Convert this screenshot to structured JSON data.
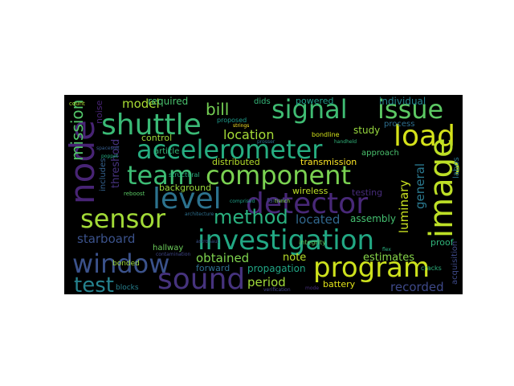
{
  "wordcloud": {
    "background": "#000000",
    "words": [
      {
        "text": "signal",
        "color": "#3fbc73"
      },
      {
        "text": "issue",
        "color": "#5cc863"
      },
      {
        "text": "shuttle",
        "color": "#3aba76"
      },
      {
        "text": "node",
        "color": "#482475"
      },
      {
        "text": "accelerometer",
        "color": "#26ad81"
      },
      {
        "text": "load",
        "color": "#d5e21a"
      },
      {
        "text": "team",
        "color": "#3dbc74"
      },
      {
        "text": "component",
        "color": "#7ad151"
      },
      {
        "text": "image",
        "color": "#bddf26"
      },
      {
        "text": "level",
        "color": "#2c728e"
      },
      {
        "text": "detector",
        "color": "#482878"
      },
      {
        "text": "sensor",
        "color": "#a2da37"
      },
      {
        "text": "method",
        "color": "#2ab07f"
      },
      {
        "text": "investigation",
        "color": "#22a884"
      },
      {
        "text": "window",
        "color": "#3b528b"
      },
      {
        "text": "program",
        "color": "#cde11d"
      },
      {
        "text": "test",
        "color": "#26828e"
      },
      {
        "text": "sound",
        "color": "#46337e"
      },
      {
        "text": "mission",
        "color": "#52c569"
      },
      {
        "text": "model",
        "color": "#a8db34"
      },
      {
        "text": "required",
        "color": "#4ac16d"
      },
      {
        "text": "bill",
        "color": "#75d054"
      },
      {
        "text": "location",
        "color": "#a5db36"
      },
      {
        "text": "starboard",
        "color": "#3b528b"
      },
      {
        "text": "located",
        "color": "#31688e"
      },
      {
        "text": "luminary",
        "color": "#c8e020"
      },
      {
        "text": "general",
        "color": "#2a788e"
      },
      {
        "text": "obtained",
        "color": "#7fd34e"
      },
      {
        "text": "note",
        "color": "#b8de29"
      },
      {
        "text": "estimates",
        "color": "#86d549"
      },
      {
        "text": "period",
        "color": "#a0da39"
      },
      {
        "text": "recorded",
        "color": "#3e4989"
      },
      {
        "text": "individual",
        "color": "#25848e"
      },
      {
        "text": "threshold",
        "color": "#46327e"
      },
      {
        "text": "background",
        "color": "#9bd93c"
      },
      {
        "text": "distributed",
        "color": "#b5de2b"
      },
      {
        "text": "transmission",
        "color": "#fde725"
      },
      {
        "text": "wireless",
        "color": "#bddf26"
      },
      {
        "text": "testing",
        "color": "#472c7a"
      },
      {
        "text": "assembly",
        "color": "#44bf70"
      },
      {
        "text": "battery",
        "color": "#e2e418"
      },
      {
        "text": "propagation",
        "color": "#21a685"
      },
      {
        "text": "forward",
        "color": "#2e6e8e"
      },
      {
        "text": "study",
        "color": "#98d83e"
      },
      {
        "text": "approach",
        "color": "#4ac16d"
      },
      {
        "text": "process",
        "color": "#2e6e8e"
      },
      {
        "text": "control",
        "color": "#9dd93b"
      },
      {
        "text": "article",
        "color": "#35b779"
      },
      {
        "text": "powered",
        "color": "#1f9e89"
      },
      {
        "text": "dids",
        "color": "#35b779"
      },
      {
        "text": "acquisition",
        "color": "#3e4a89"
      },
      {
        "text": "labos",
        "color": "#2a768e"
      },
      {
        "text": "proof",
        "color": "#31b57b"
      },
      {
        "text": "bondline",
        "color": "#d2e21b"
      },
      {
        "text": "noise",
        "color": "#482475"
      },
      {
        "text": "includes",
        "color": "#34618d"
      },
      {
        "text": "failure",
        "color": "#3e4a89"
      },
      {
        "text": "hallway",
        "color": "#6ccd5a"
      },
      {
        "text": "bonded",
        "color": "#9dd93b"
      },
      {
        "text": "blocks",
        "color": "#277f8e"
      },
      {
        "text": "integrity",
        "color": "#5ec962"
      },
      {
        "text": "verification",
        "color": "#414487"
      },
      {
        "text": "cracks",
        "color": "#2db27d"
      },
      {
        "text": "proposed",
        "color": "#1e9b8a"
      },
      {
        "text": "structural",
        "color": "#29af7f"
      },
      {
        "text": "architecture",
        "color": "#2d708e"
      },
      {
        "text": "astronaut",
        "color": "#3b528b"
      },
      {
        "text": "comprised",
        "color": "#1fa088"
      },
      {
        "text": "reboost",
        "color": "#5ac864"
      },
      {
        "text": "count",
        "color": "#b0dd2f"
      },
      {
        "text": "poppet",
        "color": "#25ac82"
      },
      {
        "text": "prosser",
        "color": "#2d718e"
      },
      {
        "text": "handheld",
        "color": "#31b57b"
      },
      {
        "text": "flex",
        "color": "#2ab07f"
      },
      {
        "text": "spacesuit",
        "color": "#365d8d"
      },
      {
        "text": "contamination",
        "color": "#3f4788"
      },
      {
        "text": "strings",
        "color": "#fde725"
      },
      {
        "text": "trench",
        "color": "#8bd646"
      },
      {
        "text": "mode",
        "color": "#472f7d"
      }
    ]
  }
}
